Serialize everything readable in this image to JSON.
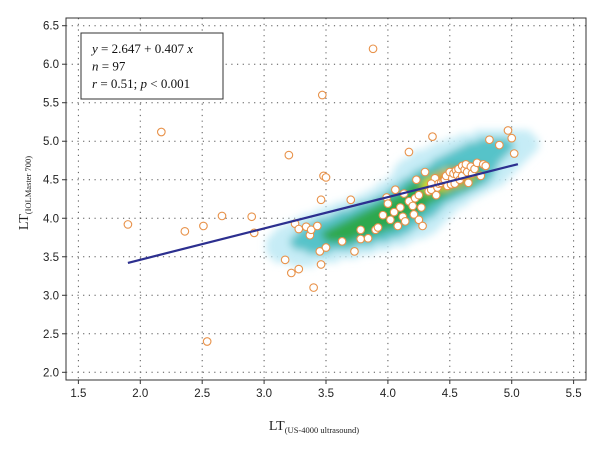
{
  "chart_data": {
    "type": "scatter",
    "x_label": {
      "main": "LT",
      "sub": "(US-4000 ultrasound)"
    },
    "y_label": {
      "main": "LT",
      "sub": "(IOLMaster 700)"
    },
    "xlim": [
      1.4,
      5.6
    ],
    "ylim": [
      1.9,
      6.6
    ],
    "x_ticks": [
      "1.5",
      "2.0",
      "2.5",
      "3.0",
      "3.5",
      "4.0",
      "4.5",
      "5.0",
      "5.5"
    ],
    "y_ticks": [
      "2.0",
      "2.5",
      "3.0",
      "3.5",
      "4.0",
      "4.5",
      "5.0",
      "5.5",
      "6.0",
      "6.5"
    ],
    "grid": true,
    "regression": {
      "intercept": 2.647,
      "slope": 0.407,
      "x_range": [
        1.9,
        5.05
      ],
      "color": "#2c2f8f"
    },
    "annotation": {
      "lines": [
        [
          {
            "t": "y",
            "i": true
          },
          {
            "t": " = 2.647 + 0.407 "
          },
          {
            "t": "x",
            "i": true
          }
        ],
        [
          {
            "t": "n",
            "i": true
          },
          {
            "t": " = 97"
          }
        ],
        [
          {
            "t": "r",
            "i": true
          },
          {
            "t": " = 0.51; "
          },
          {
            "t": "p",
            "i": true
          },
          {
            "t": " < 0.001"
          }
        ]
      ]
    },
    "density_color_ramp": [
      "#c6ecf6",
      "#56c3c9",
      "#2ea84e",
      "#e6e21a",
      "#f08a1c",
      "#e83c1c"
    ],
    "point_color": "#e8924a",
    "points": [
      [
        1.9,
        3.92
      ],
      [
        2.17,
        5.12
      ],
      [
        2.36,
        3.83
      ],
      [
        2.51,
        3.9
      ],
      [
        2.54,
        2.4
      ],
      [
        2.66,
        4.03
      ],
      [
        2.9,
        4.02
      ],
      [
        2.92,
        3.81
      ],
      [
        3.2,
        4.82
      ],
      [
        3.17,
        3.46
      ],
      [
        3.22,
        3.29
      ],
      [
        3.28,
        3.34
      ],
      [
        3.25,
        3.93
      ],
      [
        3.28,
        3.86
      ],
      [
        3.34,
        3.89
      ],
      [
        3.37,
        3.78
      ],
      [
        3.38,
        3.85
      ],
      [
        3.4,
        3.1
      ],
      [
        3.43,
        3.9
      ],
      [
        3.45,
        3.57
      ],
      [
        3.46,
        3.4
      ],
      [
        3.46,
        4.24
      ],
      [
        3.47,
        5.6
      ],
      [
        3.48,
        4.55
      ],
      [
        3.5,
        4.53
      ],
      [
        3.5,
        3.62
      ],
      [
        3.63,
        3.7
      ],
      [
        3.7,
        4.24
      ],
      [
        3.73,
        3.57
      ],
      [
        3.78,
        3.85
      ],
      [
        3.78,
        3.73
      ],
      [
        3.88,
        6.2
      ],
      [
        3.84,
        3.74
      ],
      [
        3.9,
        3.85
      ],
      [
        3.92,
        3.88
      ],
      [
        3.96,
        4.04
      ],
      [
        3.99,
        4.27
      ],
      [
        4.0,
        4.19
      ],
      [
        4.02,
        3.98
      ],
      [
        4.05,
        4.08
      ],
      [
        4.06,
        4.37
      ],
      [
        4.08,
        3.9
      ],
      [
        4.1,
        4.14
      ],
      [
        4.12,
        4.02
      ],
      [
        4.13,
        4.32
      ],
      [
        4.14,
        3.96
      ],
      [
        4.17,
        4.86
      ],
      [
        4.17,
        4.22
      ],
      [
        4.2,
        4.16
      ],
      [
        4.21,
        4.05
      ],
      [
        4.22,
        4.26
      ],
      [
        4.25,
        4.3
      ],
      [
        4.25,
        3.98
      ],
      [
        4.27,
        4.14
      ],
      [
        4.28,
        3.9
      ],
      [
        4.3,
        4.6
      ],
      [
        4.33,
        4.35
      ],
      [
        4.35,
        4.37
      ],
      [
        4.36,
        5.06
      ],
      [
        4.38,
        4.52
      ],
      [
        4.39,
        4.3
      ],
      [
        4.4,
        4.4
      ],
      [
        4.41,
        4.45
      ],
      [
        4.43,
        4.46
      ],
      [
        4.45,
        4.48
      ],
      [
        4.46,
        4.5
      ],
      [
        4.47,
        4.55
      ],
      [
        4.48,
        4.42
      ],
      [
        4.5,
        4.6
      ],
      [
        4.51,
        4.44
      ],
      [
        4.52,
        4.52
      ],
      [
        4.53,
        4.58
      ],
      [
        4.54,
        4.45
      ],
      [
        4.55,
        4.62
      ],
      [
        4.56,
        4.56
      ],
      [
        4.57,
        4.64
      ],
      [
        4.58,
        4.5
      ],
      [
        4.6,
        4.68
      ],
      [
        4.6,
        4.55
      ],
      [
        4.62,
        4.63
      ],
      [
        4.63,
        4.7
      ],
      [
        4.64,
        4.6
      ],
      [
        4.65,
        4.46
      ],
      [
        4.67,
        4.67
      ],
      [
        4.68,
        4.58
      ],
      [
        4.7,
        4.64
      ],
      [
        4.72,
        4.72
      ],
      [
        4.75,
        4.55
      ],
      [
        4.77,
        4.7
      ],
      [
        4.79,
        4.68
      ],
      [
        4.82,
        5.02
      ],
      [
        4.9,
        4.95
      ],
      [
        4.97,
        5.14
      ],
      [
        5.0,
        5.04
      ],
      [
        5.02,
        4.84
      ],
      [
        4.23,
        4.5
      ],
      [
        4.35,
        4.45
      ]
    ],
    "density_blobs": [
      {
        "x": 4.55,
        "y": 4.55,
        "sx": 0.09,
        "sy": 0.07,
        "w": 0.55
      },
      {
        "x": 4.45,
        "y": 4.45,
        "sx": 0.2,
        "sy": 0.13,
        "w": 0.45
      },
      {
        "x": 4.1,
        "y": 4.15,
        "sx": 0.22,
        "sy": 0.15,
        "w": 0.35
      },
      {
        "x": 3.85,
        "y": 3.85,
        "sx": 0.28,
        "sy": 0.18,
        "w": 0.28
      },
      {
        "x": 3.45,
        "y": 3.75,
        "sx": 0.25,
        "sy": 0.25,
        "w": 0.16
      },
      {
        "x": 4.6,
        "y": 4.75,
        "sx": 0.3,
        "sy": 0.22,
        "w": 0.18
      },
      {
        "x": 4.85,
        "y": 4.95,
        "sx": 0.18,
        "sy": 0.15,
        "w": 0.12
      }
    ]
  }
}
